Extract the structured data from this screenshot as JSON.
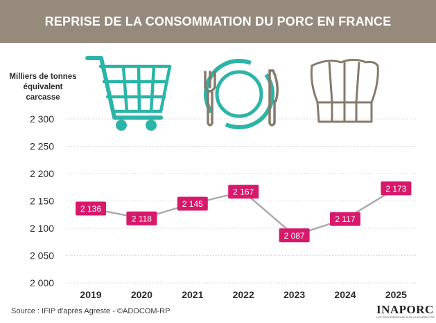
{
  "header": {
    "title": "REPRISE DE LA CONSOMMATION DU PORC EN FRANCE"
  },
  "source": "Source : IFIP d'après Agreste - ©ADOCOM-RP",
  "logo": {
    "text": "INAPORC",
    "subtitle": "LES PROFESSIONNELS DE LA FILIÈRE PORCINE FRANÇAISE"
  },
  "icons": [
    "shopping-cart-icon",
    "fork-plate-knife-icon",
    "chef-hat-icon"
  ],
  "colors": {
    "header_bg": "#958a7c",
    "line": "#aaaaaa",
    "label_bg": "#d6196b",
    "cart": "#2bb5a8",
    "plate": "#2bb5a8",
    "cutlery": "#857a6c"
  },
  "chart_data": {
    "type": "line",
    "ylabel": "Milliers de tonnes\néquivalent\ncarcasse",
    "ylim": [
      2000,
      2300
    ],
    "yticks": [
      2000,
      2050,
      2100,
      2150,
      2200,
      2250,
      2300
    ],
    "ytick_labels": [
      "2 000",
      "2 050",
      "2 100",
      "2 150",
      "2 200",
      "2 250",
      "2 300"
    ],
    "categories": [
      "2019",
      "2020",
      "2021",
      "2022",
      "2023",
      "2024",
      "2025"
    ],
    "values": [
      2136,
      2118,
      2145,
      2167,
      2087,
      2117,
      2173
    ],
    "data_labels": [
      "2 136",
      "2 118",
      "2 145",
      "2 167",
      "2 087",
      "2 117",
      "2 173"
    ],
    "grid": true
  }
}
